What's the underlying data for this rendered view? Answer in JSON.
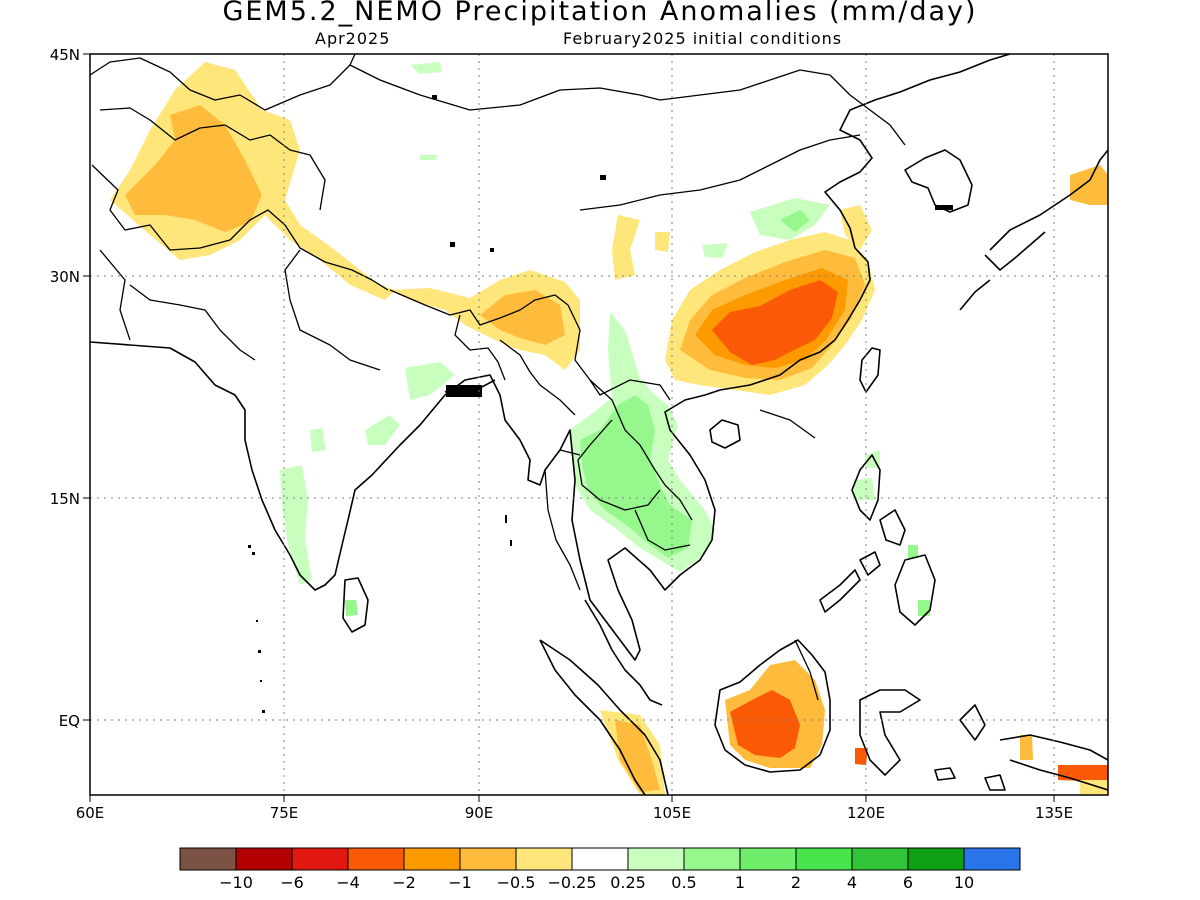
{
  "title": "GEM5.2_NEMO Precipitation Anomalies (mm/day)",
  "subtitle_left": "Apr2025",
  "subtitle_right": "February2025 initial conditions",
  "map": {
    "lon_range": [
      60,
      140
    ],
    "lat_range": [
      -6,
      45
    ],
    "lon_ticks": [
      "60E",
      "75E",
      "90E",
      "105E",
      "120E",
      "135E"
    ],
    "lat_ticks": [
      "45N",
      "30N",
      "15N",
      "EQ"
    ],
    "grid": "dotted"
  },
  "colorbar": {
    "colors": [
      "#7b5244",
      "#b40000",
      "#e0180f",
      "#fa5a05",
      "#fd9a00",
      "#ffbc3c",
      "#ffe67a",
      "#ffffff",
      "#c8ffbe",
      "#96f78c",
      "#6eee6a",
      "#48e44b",
      "#32c437",
      "#0ea014",
      "#2874e8"
    ],
    "labels": [
      "-10",
      "-6",
      "-4",
      "-2",
      "-1",
      "-0.5",
      "-0.25",
      "0.25",
      "0.5",
      "1",
      "2",
      "4",
      "6",
      "10"
    ]
  },
  "anomaly_regions": [
    {
      "name": "afghanistan-dry",
      "level": "-1"
    },
    {
      "name": "himalaya-dry",
      "level": "-0.5"
    },
    {
      "name": "south-china-dry",
      "level": "-2"
    },
    {
      "name": "borneo-dry",
      "level": "-2"
    },
    {
      "name": "indochina-wet",
      "level": "0.5"
    },
    {
      "name": "india-wet",
      "level": "0.25"
    }
  ]
}
